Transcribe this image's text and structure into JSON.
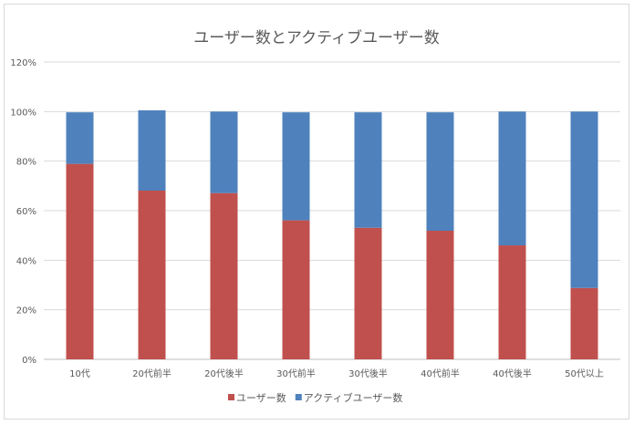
{
  "chart_data": {
    "type": "bar",
    "stacked": true,
    "title": "ユーザー数とアクティブユーザー数",
    "categories": [
      "10代",
      "20代前半",
      "20代後半",
      "30代前半",
      "30代後半",
      "40代前半",
      "40代後半",
      "50代以上"
    ],
    "series": [
      {
        "name": "ユーザー数",
        "color": "#c0504d",
        "values": [
          78.9,
          68.1,
          67.1,
          56.1,
          53.1,
          51.9,
          46.0,
          28.8
        ]
      },
      {
        "name": "アクティブユーザー数",
        "color": "#4f81bd",
        "values": [
          20.8,
          32.4,
          32.9,
          43.6,
          46.6,
          47.8,
          54.0,
          71.2
        ]
      }
    ],
    "ylim": [
      0,
      120
    ],
    "yticks": [
      "0%",
      "20%",
      "40%",
      "60%",
      "80%",
      "100%",
      "120%"
    ],
    "grid": true,
    "legend": "bottom"
  }
}
